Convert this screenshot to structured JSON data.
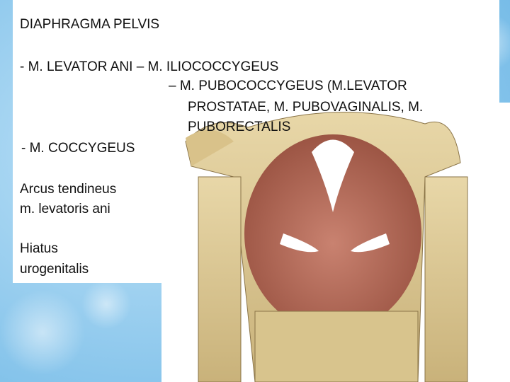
{
  "title": "DIAPHRAGMA PELVIS",
  "levator_ani": {
    "lines": [
      "- M. LEVATOR ANI – M. ILIOCOCCYGEUS",
      "– M. PUBOCOCCYGEUS (M.LEVATOR",
      "PROSTATAE, M. PUBOVAGINALIS, M.",
      "PUBORECTALIS"
    ]
  },
  "coccygeus": "- M. COCCYGEUS",
  "arcus": {
    "lines": [
      "Arcus tendineus",
      "m. levatoris ani"
    ]
  },
  "hiatus": {
    "lines": [
      "Hiatus",
      "urogenitalis"
    ]
  }
}
